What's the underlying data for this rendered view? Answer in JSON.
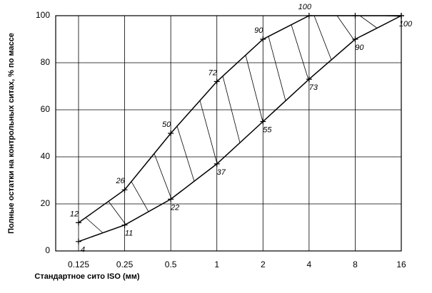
{
  "chart_data": {
    "type": "line",
    "x_label": "Стандартное сито ISO (мм)",
    "y_label": "Полные остатки на контрольных ситах, % по массе",
    "categories": [
      "0.125",
      "0.25",
      "0.5",
      "1",
      "2",
      "4",
      "8",
      "16"
    ],
    "series": [
      {
        "color": "#000000",
        "values": [
          12,
          26,
          50,
          72,
          90,
          100,
          100,
          100
        ],
        "value_labels": [
          "12",
          "26",
          "50",
          "72",
          "90",
          "100",
          null,
          null
        ]
      },
      {
        "color": "#000000",
        "values": [
          4,
          11,
          22,
          37,
          55,
          73,
          90,
          100
        ],
        "value_labels": [
          "4",
          "11",
          "22",
          "37",
          "55",
          "73",
          "90",
          "100"
        ]
      }
    ],
    "ylim": [
      0,
      100
    ],
    "yticks": [
      0,
      20,
      40,
      60,
      80,
      100
    ],
    "grid": true
  }
}
